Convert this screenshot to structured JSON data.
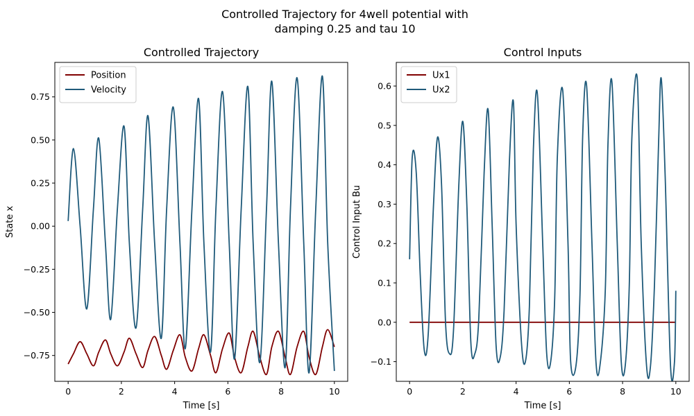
{
  "figure": {
    "suptitle_line1": "Controlled Trajectory for 4well potential with",
    "suptitle_line2": "damping 0.25 and tau 10"
  },
  "colors": {
    "position": "#800000",
    "velocity": "#1f5a7a",
    "ux1": "#800000",
    "ux2": "#1f5a7a"
  },
  "chart_data": [
    {
      "type": "line",
      "title": "Controlled Trajectory",
      "xlabel": "Time [s]",
      "ylabel": "State x",
      "xlim": [
        -0.5,
        10.5
      ],
      "ylim": [
        -0.9,
        0.95
      ],
      "xticks": [
        0,
        2,
        4,
        6,
        8,
        10
      ],
      "yticks": [
        -0.75,
        -0.5,
        -0.25,
        0.0,
        0.25,
        0.5,
        0.75
      ],
      "ytick_labels": [
        "−0.75",
        "−0.50",
        "−0.25",
        "0.00",
        "0.25",
        "0.50",
        "0.75"
      ],
      "legend": "top-left",
      "series": [
        {
          "name": "Position",
          "color": "#800000",
          "x": [
            0,
            0.2,
            0.45,
            0.7,
            0.95,
            1.15,
            1.4,
            1.6,
            1.85,
            2.1,
            2.3,
            2.55,
            2.8,
            3.0,
            3.25,
            3.5,
            3.7,
            3.95,
            4.2,
            4.4,
            4.65,
            4.9,
            5.1,
            5.35,
            5.55,
            5.8,
            6.05,
            6.25,
            6.5,
            6.75,
            6.95,
            7.2,
            7.45,
            7.65,
            7.9,
            8.15,
            8.35,
            8.6,
            8.85,
            9.05,
            9.3,
            9.55,
            9.75,
            10.0
          ],
          "y": [
            -0.8,
            -0.74,
            -0.67,
            -0.74,
            -0.81,
            -0.73,
            -0.66,
            -0.74,
            -0.81,
            -0.73,
            -0.65,
            -0.74,
            -0.82,
            -0.72,
            -0.64,
            -0.75,
            -0.83,
            -0.72,
            -0.63,
            -0.76,
            -0.84,
            -0.71,
            -0.63,
            -0.75,
            -0.85,
            -0.71,
            -0.62,
            -0.76,
            -0.85,
            -0.7,
            -0.61,
            -0.76,
            -0.86,
            -0.7,
            -0.61,
            -0.76,
            -0.86,
            -0.7,
            -0.61,
            -0.76,
            -0.86,
            -0.7,
            -0.6,
            -0.7
          ]
        },
        {
          "name": "Velocity",
          "color": "#1f5a7a",
          "x": [
            0,
            0.2,
            0.45,
            0.7,
            0.95,
            1.15,
            1.4,
            1.6,
            1.85,
            2.1,
            2.3,
            2.55,
            2.8,
            3.0,
            3.25,
            3.5,
            3.7,
            3.95,
            4.2,
            4.4,
            4.65,
            4.9,
            5.1,
            5.35,
            5.55,
            5.8,
            6.05,
            6.25,
            6.5,
            6.75,
            6.95,
            7.2,
            7.45,
            7.65,
            7.9,
            8.15,
            8.35,
            8.6,
            8.85,
            9.05,
            9.3,
            9.55,
            9.75,
            10.0
          ],
          "y": [
            0.03,
            0.45,
            0.0,
            -0.48,
            0.1,
            0.51,
            -0.1,
            -0.54,
            0.1,
            0.58,
            -0.1,
            -0.59,
            0.1,
            0.64,
            -0.1,
            -0.65,
            0.1,
            0.69,
            -0.1,
            -0.71,
            0.1,
            0.74,
            -0.1,
            -0.73,
            0.1,
            0.78,
            -0.1,
            -0.77,
            0.1,
            0.81,
            -0.1,
            -0.79,
            0.1,
            0.84,
            -0.1,
            -0.82,
            0.1,
            0.86,
            -0.1,
            -0.85,
            0.1,
            0.87,
            -0.1,
            -0.84
          ]
        }
      ]
    },
    {
      "type": "line",
      "title": "Control Inputs",
      "xlabel": "Time [s]",
      "ylabel": "Control Input Bu",
      "xlim": [
        -0.5,
        10.5
      ],
      "ylim": [
        -0.15,
        0.66
      ],
      "xticks": [
        0,
        2,
        4,
        6,
        8,
        10
      ],
      "yticks": [
        -0.1,
        0.0,
        0.1,
        0.2,
        0.3,
        0.4,
        0.5,
        0.6
      ],
      "ytick_labels": [
        "−0.1",
        "0.0",
        "0.1",
        "0.2",
        "0.3",
        "0.4",
        "0.5",
        "0.6"
      ],
      "legend": "top-left",
      "series": [
        {
          "name": "Ux1",
          "color": "#800000",
          "x": [
            0,
            10
          ],
          "y": [
            0.0,
            0.0
          ]
        },
        {
          "name": "Ux2",
          "color": "#1f5a7a",
          "x": [
            0,
            0.1,
            0.25,
            0.4,
            0.55,
            0.7,
            0.9,
            1.05,
            1.2,
            1.35,
            1.5,
            1.65,
            1.85,
            2.0,
            2.15,
            2.3,
            2.45,
            2.6,
            2.8,
            2.95,
            3.1,
            3.25,
            3.4,
            3.55,
            3.75,
            3.9,
            4.0,
            4.2,
            4.35,
            4.5,
            4.65,
            4.8,
            5.0,
            5.15,
            5.3,
            5.45,
            5.55,
            5.75,
            5.95,
            6.05,
            6.25,
            6.4,
            6.5,
            6.65,
            6.85,
            7.0,
            7.15,
            7.35,
            7.45,
            7.6,
            7.8,
            7.95,
            8.1,
            8.25,
            8.35,
            8.55,
            8.7,
            8.9,
            9.05,
            9.2,
            9.35,
            9.45,
            9.6,
            9.8,
            9.95,
            10.0
          ],
          "y": [
            0.16,
            0.42,
            0.38,
            0.12,
            -0.07,
            -0.03,
            0.3,
            0.47,
            0.35,
            0.0,
            -0.08,
            -0.02,
            0.35,
            0.51,
            0.3,
            -0.05,
            -0.08,
            0.01,
            0.38,
            0.54,
            0.25,
            -0.06,
            -0.09,
            0.03,
            0.41,
            0.56,
            0.25,
            -0.05,
            -0.1,
            0.04,
            0.44,
            0.58,
            0.2,
            -0.08,
            -0.1,
            0.06,
            0.42,
            0.59,
            0.2,
            -0.1,
            -0.11,
            0.07,
            0.47,
            0.6,
            0.2,
            -0.1,
            -0.11,
            0.08,
            0.45,
            0.61,
            0.2,
            -0.1,
            -0.11,
            0.09,
            0.47,
            0.62,
            0.2,
            -0.11,
            -0.11,
            0.1,
            0.45,
            0.62,
            0.37,
            -0.11,
            -0.1,
            0.08
          ]
        }
      ]
    }
  ]
}
